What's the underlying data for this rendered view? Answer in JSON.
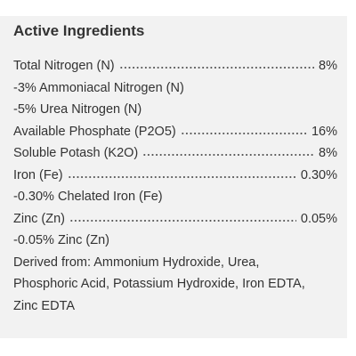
{
  "title": "Active Ingredients",
  "rows": [
    {
      "label": "Total Nitrogen (N)",
      "value": "8%"
    },
    {
      "label": "-3% Ammoniacal Nitrogen (N)"
    },
    {
      "label": "-5% Urea Nitrogen (N)"
    },
    {
      "label": "Available Phosphate (P2O5)",
      "value": "16%"
    },
    {
      "label": "Soluble Potash (K2O)",
      "value": "8%"
    },
    {
      "label": "Iron (Fe)",
      "value": "0.30%"
    },
    {
      "label": "-0.30% Chelated Iron (Fe)"
    },
    {
      "label": "Zinc (Zn)",
      "value": "0.05%"
    },
    {
      "label": "-0.05% Zinc (Zn)"
    }
  ],
  "derived": "Derived from: Ammonium Hydroxide, Urea, Phosphoric Acid, Potassium Hydroxide, Iron EDTA, Zinc EDTA"
}
